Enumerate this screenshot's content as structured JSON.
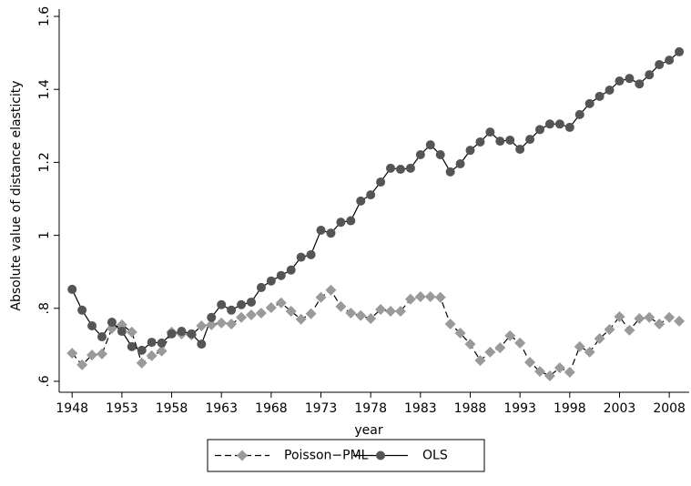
{
  "chart_data": {
    "type": "line",
    "x_label": "year",
    "y_label": "Absolute value of distance elasticity",
    "x": [
      1948,
      1949,
      1950,
      1951,
      1952,
      1953,
      1954,
      1955,
      1956,
      1957,
      1958,
      1959,
      1960,
      1961,
      1962,
      1963,
      1964,
      1965,
      1966,
      1967,
      1968,
      1969,
      1970,
      1971,
      1972,
      1973,
      1974,
      1975,
      1976,
      1977,
      1978,
      1979,
      1980,
      1981,
      1982,
      1983,
      1984,
      1985,
      1986,
      1987,
      1988,
      1989,
      1990,
      1991,
      1992,
      1993,
      1994,
      1995,
      1996,
      1997,
      1998,
      1999,
      2000,
      2001,
      2002,
      2003,
      2004,
      2005,
      2006,
      2007,
      2008,
      2009
    ],
    "series": [
      {
        "name": "Poisson−PML",
        "color": "#9a9a9a",
        "line_style": "dashed",
        "marker": "diamond",
        "values": [
          0.677,
          0.645,
          0.672,
          0.675,
          0.745,
          0.755,
          0.735,
          0.65,
          0.67,
          0.683,
          0.735,
          0.73,
          0.727,
          0.752,
          0.755,
          0.76,
          0.757,
          0.775,
          0.782,
          0.787,
          0.802,
          0.815,
          0.792,
          0.77,
          0.785,
          0.83,
          0.85,
          0.805,
          0.787,
          0.78,
          0.772,
          0.797,
          0.792,
          0.792,
          0.825,
          0.832,
          0.832,
          0.83,
          0.757,
          0.732,
          0.702,
          0.657,
          0.68,
          0.692,
          0.725,
          0.705,
          0.652,
          0.627,
          0.615,
          0.637,
          0.625,
          0.695,
          0.68,
          0.717,
          0.742,
          0.777,
          0.74,
          0.772,
          0.775,
          0.757,
          0.775,
          0.765
        ]
      },
      {
        "name": "OLS",
        "color": "#555555",
        "line_style": "solid",
        "marker": "circle",
        "values": [
          0.852,
          0.795,
          0.752,
          0.722,
          0.762,
          0.737,
          0.695,
          0.685,
          0.707,
          0.705,
          0.73,
          0.737,
          0.73,
          0.702,
          0.775,
          0.81,
          0.795,
          0.81,
          0.817,
          0.857,
          0.875,
          0.89,
          0.905,
          0.94,
          0.947,
          1.014,
          1.006,
          1.036,
          1.04,
          1.094,
          1.111,
          1.146,
          1.184,
          1.181,
          1.184,
          1.221,
          1.248,
          1.221,
          1.174,
          1.196,
          1.233,
          1.256,
          1.283,
          1.258,
          1.261,
          1.236,
          1.263,
          1.29,
          1.305,
          1.305,
          1.296,
          1.331,
          1.361,
          1.381,
          1.398,
          1.423,
          1.43,
          1.415,
          1.44,
          1.468,
          1.48,
          1.503
        ]
      }
    ],
    "xlim": [
      1946.7,
      2010
    ],
    "xticks": [
      1948,
      1953,
      1958,
      1963,
      1968,
      1973,
      1978,
      1983,
      1988,
      1993,
      1998,
      2003,
      2008
    ],
    "ylim": [
      0.57,
      1.62
    ],
    "yticks": [
      {
        "value": 0.6,
        "label": ".6"
      },
      {
        "value": 0.8,
        "label": ".8"
      },
      1,
      1.2,
      1.4,
      1.6
    ],
    "grid": false,
    "legend": "bottom"
  }
}
